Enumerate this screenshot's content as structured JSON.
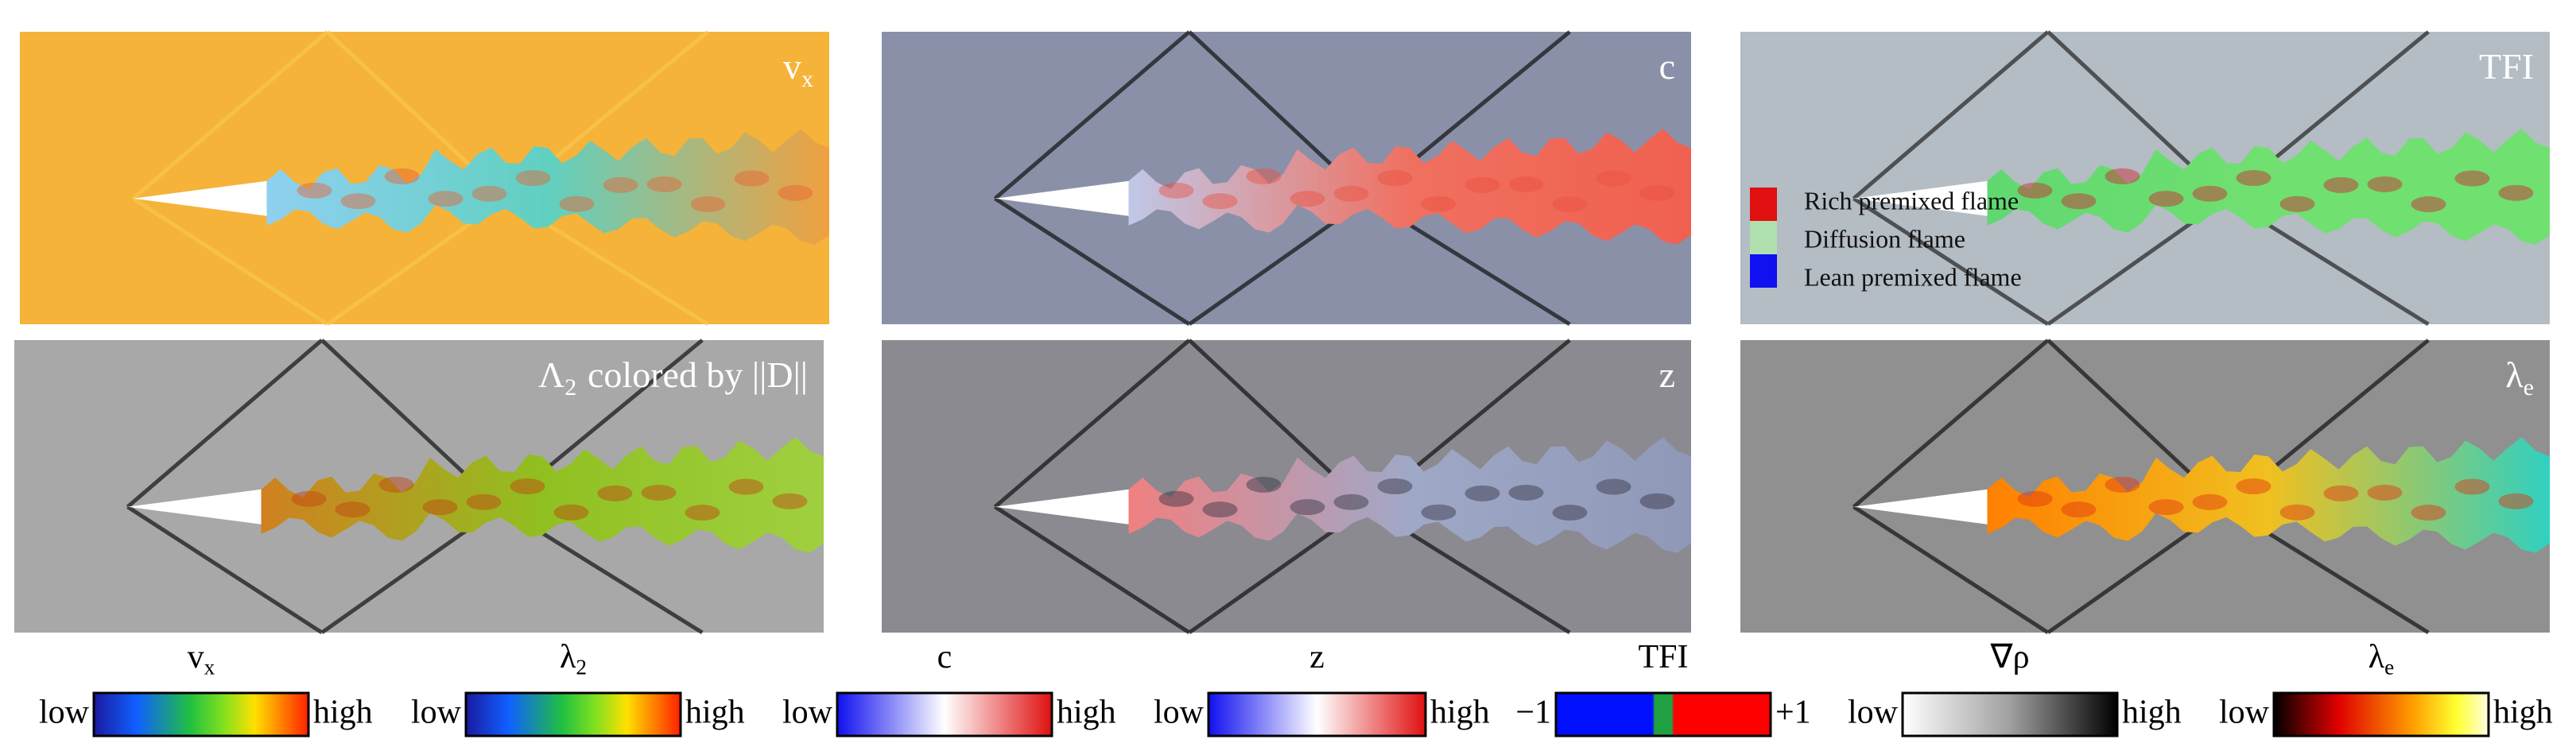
{
  "panels": [
    {
      "label": {
        "base": "v",
        "sub": "x"
      }
    },
    {
      "label": {
        "base": "c"
      }
    },
    {
      "label": {
        "base": "TFI"
      },
      "legend": [
        "Rich premixed flame",
        "Diffusion flame",
        "Lean premixed flame"
      ]
    },
    {
      "label": {
        "base": "Λ",
        "sub": "2",
        "rest": "colored by ||D||"
      }
    },
    {
      "label": {
        "base": "z"
      }
    },
    {
      "label": {
        "base": "λ",
        "sub": "e"
      }
    }
  ],
  "colorbars": [
    {
      "title": {
        "base": "v",
        "sub": "x"
      },
      "low": "low",
      "high": "high"
    },
    {
      "title": {
        "base": "λ",
        "sub": "2"
      },
      "low": "low",
      "high": "high"
    },
    {
      "title": {
        "base": "c"
      },
      "low": "low",
      "high": "high"
    },
    {
      "title": {
        "base": "z"
      },
      "low": "low",
      "high": "high"
    },
    {
      "title": {
        "base": "TFI"
      },
      "low": "−1",
      "high": "+1"
    },
    {
      "title": {
        "base": "∇ρ"
      },
      "low": "low",
      "high": "high"
    },
    {
      "title": {
        "base": "λ",
        "sub": "e"
      },
      "low": "low",
      "high": "high"
    }
  ]
}
